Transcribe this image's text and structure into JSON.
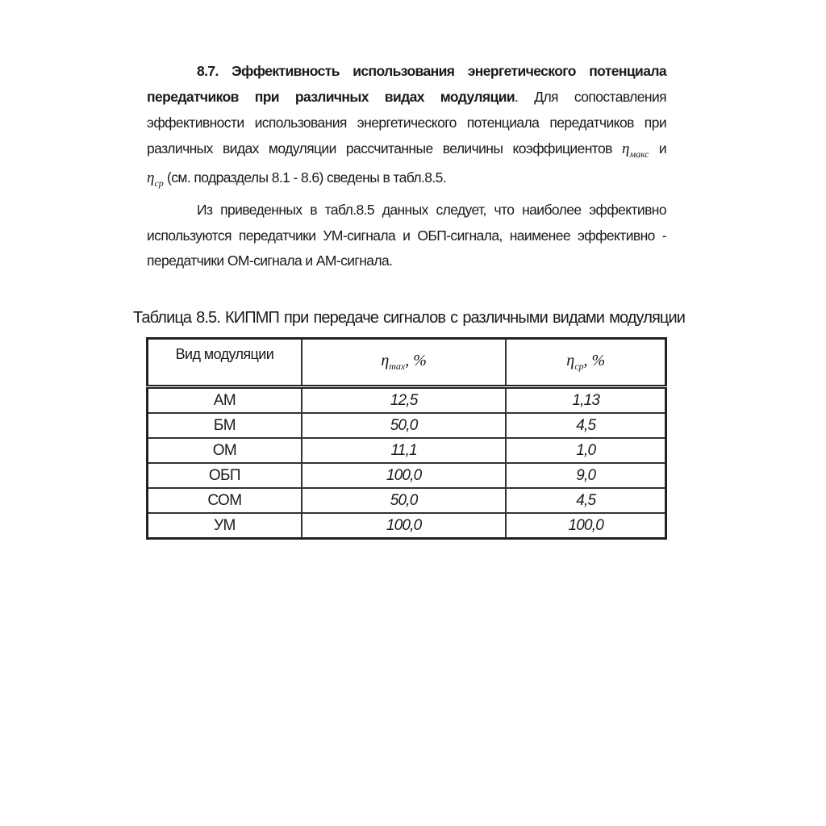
{
  "section": {
    "line1": "8.7. Эффективность использования энергетического потенциала",
    "line2_bold": "передатчиков при различных видах модуляции",
    "line2_rest": ". Для сопоставления",
    "line3": "эффективности использования энергетического потенциала передатчиков при",
    "line4": "различных видах модуляции рассчитанные величины коэффициентов",
    "eta": "η",
    "sub_max_ru": "макс",
    "line4_end": "и",
    "sub_cp": "ср",
    "line5": "(см. подразделы 8.1 - 8.6) сведены в табл.8.5.",
    "p2_line1": "Из приведенных в табл.8.5 данных следует, что наиболее эффективно",
    "p2_line2": "используются передатчики УМ-сигнала и ОБП-сигнала, наименее эффективно -",
    "p2_line3": "передатчики ОМ-сигнала и АМ-сигнала."
  },
  "table": {
    "caption": "Таблица 8.5. КИПМП при передаче сигналов с различными видами модуляции",
    "headers": {
      "col1": "Вид модуляции",
      "col2_sub": "max",
      "col3_sub": "ср",
      "unit": ", %"
    },
    "rows": [
      {
        "type": "АМ",
        "eta_max": "12,5",
        "eta_cp": "1,13"
      },
      {
        "type": "БМ",
        "eta_max": "50,0",
        "eta_cp": "4,5"
      },
      {
        "type": "ОМ",
        "eta_max": "11,1",
        "eta_cp": "1,0"
      },
      {
        "type": "ОБП",
        "eta_max": "100,0",
        "eta_cp": "9,0"
      },
      {
        "type": "СОМ",
        "eta_max": "50,0",
        "eta_cp": "4,5"
      },
      {
        "type": "УМ",
        "eta_max": "100,0",
        "eta_cp": "100,0"
      }
    ]
  }
}
